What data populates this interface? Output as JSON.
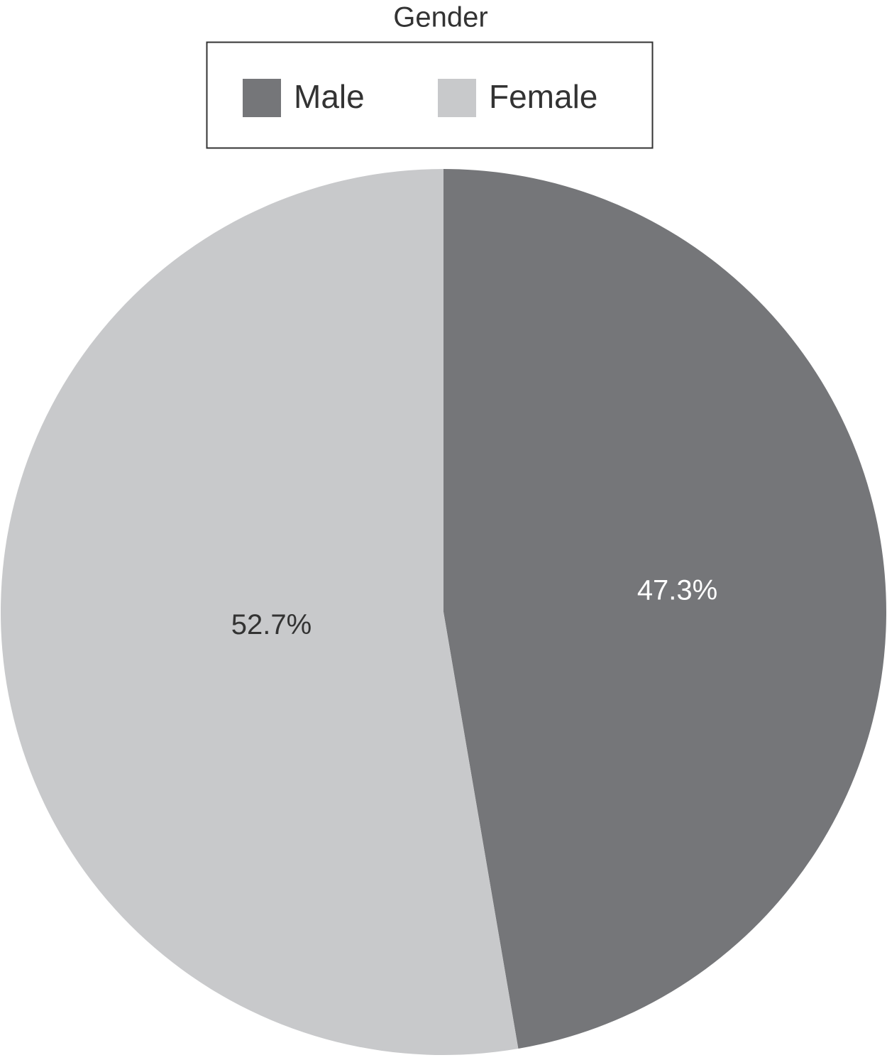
{
  "chart_data": {
    "type": "pie",
    "title": "Gender",
    "categories": [
      "Male",
      "Female"
    ],
    "values": [
      47.3,
      52.7
    ],
    "value_labels": [
      "47.3%",
      "52.7%"
    ],
    "colors": [
      "#757679",
      "#c8c9cb"
    ],
    "legend": "top"
  }
}
